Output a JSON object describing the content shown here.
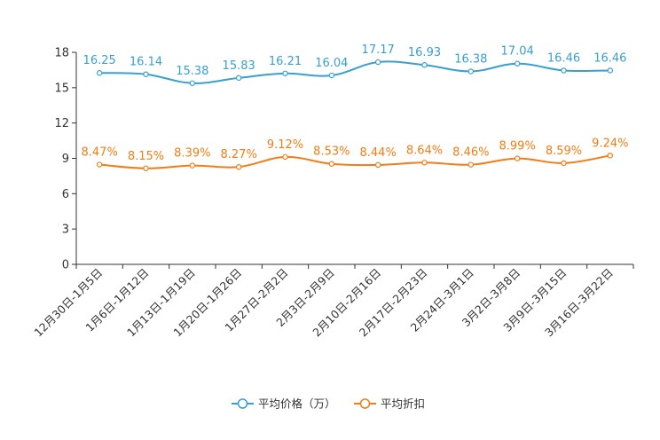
{
  "chart_data": {
    "type": "line",
    "title": "",
    "xlabel": "",
    "ylabel": "",
    "ylim": [
      0,
      18
    ],
    "yticks": [
      0,
      3,
      6,
      9,
      12,
      15,
      18
    ],
    "grid": false,
    "legend_position": "bottom-center",
    "categories": [
      "12月30日-1月5日",
      "1月6日-1月12日",
      "1月13日-1月19日",
      "1月20日-1月26日",
      "1月27日-2月2日",
      "2月3日-2月9日",
      "2月10日-2月16日",
      "2月17日-2月23日",
      "2月24日-3月1日",
      "3月2日-3月8日",
      "3月9日-3月15日",
      "3月16日-3月22日"
    ],
    "series": [
      {
        "name": "平均价格（万）",
        "color": "#3a9ecf",
        "values": [
          16.25,
          16.14,
          15.38,
          15.83,
          16.21,
          16.04,
          17.17,
          16.93,
          16.38,
          17.04,
          16.46,
          16.46
        ],
        "labels": [
          "16.25",
          "16.14",
          "15.38",
          "15.83",
          "16.21",
          "16.04",
          "17.17",
          "16.93",
          "16.38",
          "17.04",
          "16.46",
          "16.46"
        ]
      },
      {
        "name": "平均折扣",
        "color": "#f07d18",
        "values": [
          8.47,
          8.15,
          8.39,
          8.27,
          9.12,
          8.53,
          8.44,
          8.64,
          8.46,
          8.99,
          8.59,
          9.24
        ],
        "labels": [
          "8.47%",
          "8.15%",
          "8.39%",
          "8.27%",
          "9.12%",
          "8.53%",
          "8.44%",
          "8.64%",
          "8.46%",
          "8.99%",
          "8.59%",
          "9.24%"
        ]
      }
    ]
  }
}
